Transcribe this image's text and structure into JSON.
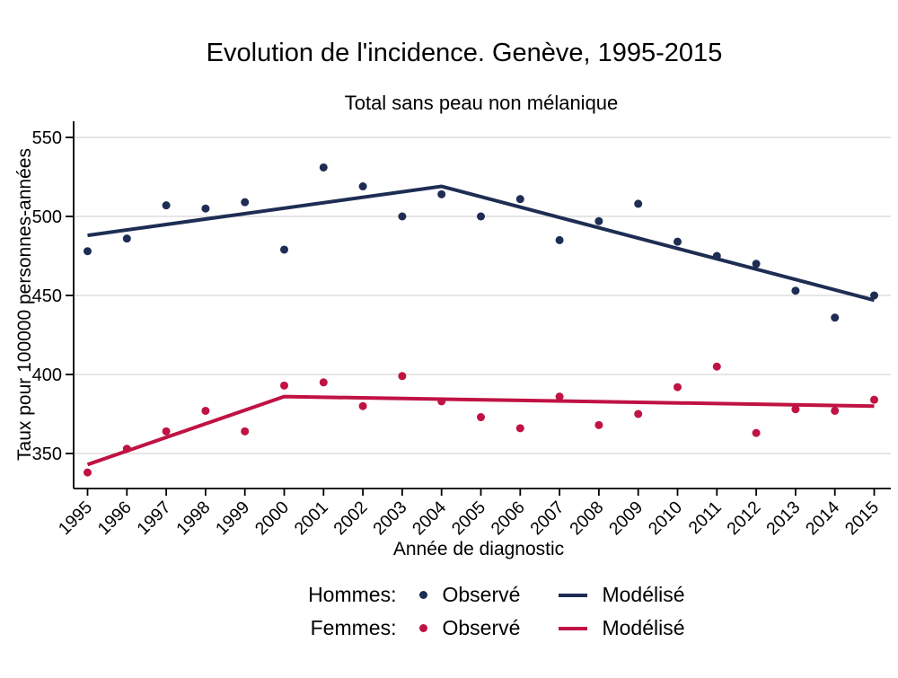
{
  "title": "Evolution de l'incidence. Genève, 1995-2015",
  "subtitle": "Total sans peau non mélanique",
  "axes": {
    "y_label": "Taux pour 100000 personnes-années",
    "x_label": "Année de diagnostic",
    "y_ticks": [
      550,
      500,
      450,
      400,
      350
    ],
    "x_ticks": [
      1995,
      1996,
      1997,
      1998,
      1999,
      2000,
      2001,
      2002,
      2003,
      2004,
      2005,
      2006,
      2007,
      2008,
      2009,
      2010,
      2011,
      2012,
      2013,
      2014,
      2015
    ]
  },
  "colors": {
    "hommes": "#1e2d53",
    "femmes": "#c01243",
    "gridline": "#d6d6d6",
    "axis": "#000000"
  },
  "legend": {
    "position": "bottom",
    "rows": [
      {
        "group": "Hommes:",
        "observed_label": "Observé",
        "modeled_label": "Modélisé",
        "color": "#1e2d53"
      },
      {
        "group": "Femmes:",
        "observed_label": "Observé",
        "modeled_label": "Modélisé",
        "color": "#c01243"
      }
    ]
  },
  "chart_data": {
    "type": "scatter",
    "title": "Evolution de l'incidence. Genève, 1995-2015",
    "subtitle": "Total sans peau non mélanique",
    "xlabel": "Année de diagnostic",
    "ylabel": "Taux pour 100000 personnes-années",
    "xlim": [
      1994.6,
      2015.4
    ],
    "ylim": [
      328,
      560
    ],
    "grid": "horizontal",
    "legend_position": "bottom",
    "x": [
      1995,
      1996,
      1997,
      1998,
      1999,
      2000,
      2001,
      2002,
      2003,
      2004,
      2005,
      2006,
      2007,
      2008,
      2009,
      2010,
      2011,
      2012,
      2013,
      2014,
      2015
    ],
    "series": [
      {
        "name": "Hommes Observé",
        "kind": "scatter",
        "color": "#1e2d53",
        "values": [
          478,
          486,
          507,
          505,
          509,
          479,
          531,
          519,
          500,
          514,
          500,
          511,
          485,
          497,
          508,
          484,
          475,
          470,
          453,
          436,
          450
        ]
      },
      {
        "name": "Hommes Modélisé",
        "kind": "line",
        "color": "#1e2d53",
        "x": [
          1995,
          2004,
          2015
        ],
        "values": [
          488,
          519,
          447
        ]
      },
      {
        "name": "Femmes Observé",
        "kind": "scatter",
        "color": "#c01243",
        "values": [
          338,
          353,
          364,
          377,
          364,
          393,
          395,
          380,
          399,
          383,
          373,
          366,
          386,
          368,
          375,
          392,
          405,
          363,
          378,
          377,
          384
        ]
      },
      {
        "name": "Femmes Modélisé",
        "kind": "line",
        "color": "#c01243",
        "x": [
          1995,
          2000,
          2015
        ],
        "values": [
          343,
          386,
          380
        ]
      }
    ]
  }
}
